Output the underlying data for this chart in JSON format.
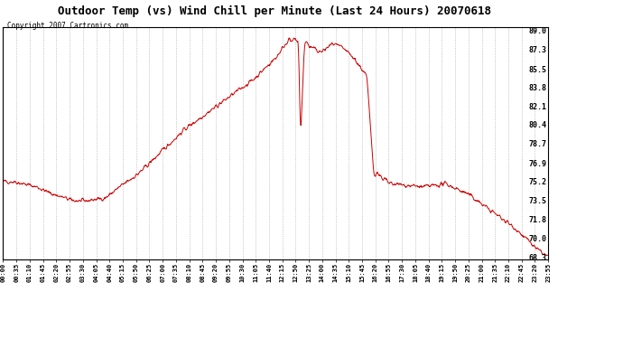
{
  "title": "Outdoor Temp (vs) Wind Chill per Minute (Last 24 Hours) 20070618",
  "copyright": "Copyright 2007 Cartronics.com",
  "line_color": "#cc0000",
  "background_color": "#ffffff",
  "plot_bg_color": "#ffffff",
  "ymin": 68.3,
  "ymax": 89.0,
  "yticks": [
    89.0,
    87.3,
    85.5,
    83.8,
    82.1,
    80.4,
    78.7,
    76.9,
    75.2,
    73.5,
    71.8,
    70.0,
    68.3
  ],
  "xtick_labels": [
    "00:00",
    "00:35",
    "01:10",
    "01:45",
    "02:20",
    "02:55",
    "03:30",
    "04:05",
    "04:40",
    "05:15",
    "05:50",
    "06:25",
    "07:00",
    "07:35",
    "08:10",
    "08:45",
    "09:20",
    "09:55",
    "10:30",
    "11:05",
    "11:40",
    "12:15",
    "12:50",
    "13:25",
    "14:00",
    "14:35",
    "15:10",
    "15:45",
    "16:20",
    "16:55",
    "17:30",
    "18:05",
    "18:40",
    "19:15",
    "19:50",
    "20:25",
    "21:00",
    "21:35",
    "22:10",
    "22:45",
    "23:20",
    "23:55"
  ]
}
